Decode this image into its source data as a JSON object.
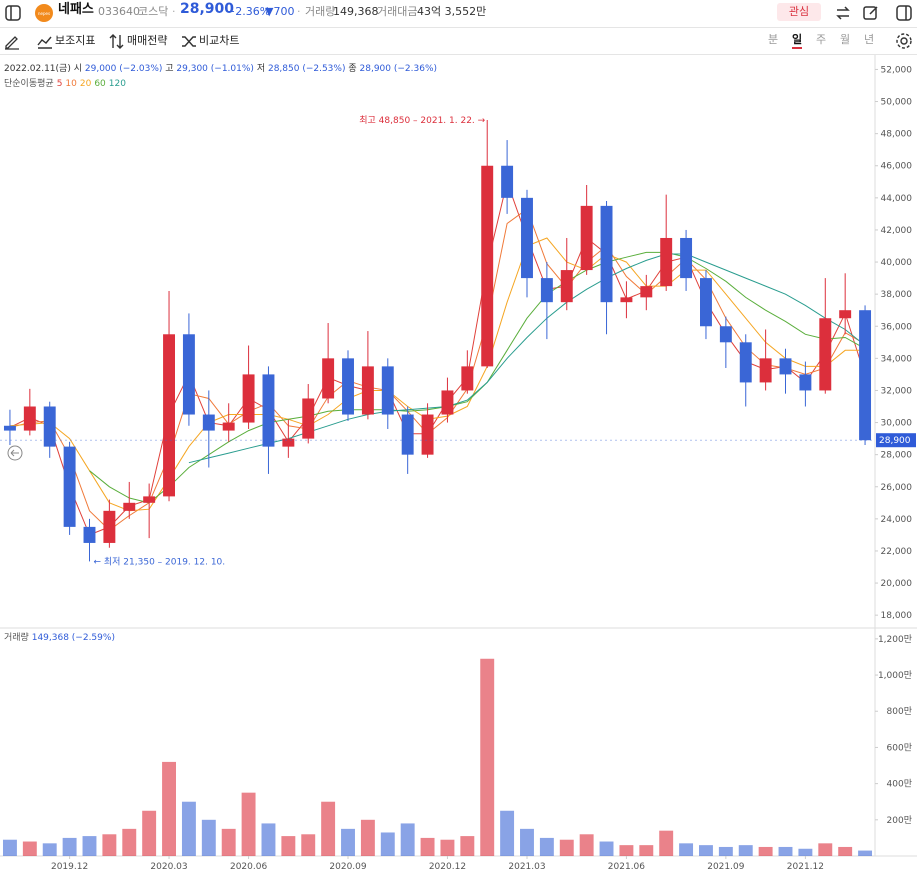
{
  "header": {
    "name": "네패스",
    "code": "033640",
    "market": "코스닥",
    "price": "28,900",
    "change_pct": "−2.36%",
    "change": "▼700",
    "volume_label": "거래량",
    "volume": "149,368",
    "amount_label": "거래대금",
    "amount": "43억 3,552만",
    "watch": "관심"
  },
  "toolbar": {
    "tools": [
      "보조지표",
      "매매전략",
      "비교차트"
    ],
    "periods": [
      "분",
      "일",
      "주",
      "월",
      "년"
    ],
    "active_period": "일"
  },
  "chart_data": {
    "type": "candlestick",
    "info": {
      "date": "2022.02.11(금)",
      "open_label": "시",
      "open": "29,000 (−2.03%)",
      "high_label": "고",
      "high": "29,300 (−1.01%)",
      "low_label": "저",
      "low": "28,850 (−2.53%)",
      "close_label": "종",
      "close": "28,900 (−2.36%)"
    },
    "ma_label": "단순이동평균",
    "annotations": {
      "high": "최고 48,850 – 2021. 1. 22. →",
      "low": "← 최저 21,350 – 2019. 12. 10."
    },
    "last_price": {
      "value": 28900,
      "label": "28,900"
    },
    "up_color": "#dc2f3c",
    "down_color": "#3a66d6",
    "categories": [
      null,
      null,
      null,
      "2019.12",
      null,
      null,
      null,
      null,
      "2020.03",
      null,
      null,
      null,
      "2020.06",
      null,
      null,
      null,
      null,
      "2020.09",
      null,
      null,
      null,
      null,
      "2020.12",
      null,
      null,
      null,
      "2021.03",
      null,
      null,
      null,
      null,
      "2021.06",
      null,
      null,
      null,
      null,
      "2021.09",
      null,
      null,
      null,
      "2021.12",
      null,
      null,
      null
    ],
    "open": [
      29800,
      29500,
      31000,
      28500,
      23500,
      22500,
      24500,
      25000,
      25400,
      35500,
      30500,
      29500,
      30000,
      33000,
      28500,
      29000,
      31500,
      34000,
      30500,
      33500,
      30500,
      28000,
      30500,
      32000,
      33500,
      46000,
      44000,
      39000,
      37500,
      39500,
      43500,
      37500,
      37800,
      38500,
      41500,
      39000,
      36000,
      35000,
      32500,
      34000,
      33000,
      32000,
      36500,
      37000
    ],
    "high": [
      30800,
      32100,
      31300,
      28800,
      24000,
      25200,
      26300,
      26200,
      38200,
      36800,
      32000,
      31200,
      34800,
      33500,
      30200,
      32400,
      36200,
      34500,
      35700,
      34000,
      31000,
      31200,
      32800,
      34500,
      48850,
      47600,
      44500,
      40000,
      41500,
      44800,
      43800,
      38800,
      39200,
      44200,
      42000,
      39500,
      36600,
      35500,
      35800,
      34600,
      33800,
      39000,
      39300,
      37300
    ],
    "low": [
      28600,
      29200,
      27800,
      23000,
      21350,
      22200,
      24000,
      22800,
      25100,
      29800,
      27200,
      28800,
      29600,
      26800,
      27800,
      28700,
      31200,
      30100,
      30200,
      29600,
      26800,
      27800,
      30000,
      31800,
      33400,
      43000,
      37800,
      35200,
      37000,
      39200,
      35500,
      36500,
      37000,
      38200,
      38200,
      35200,
      33400,
      31000,
      32000,
      31800,
      31000,
      31800,
      35500,
      28600
    ],
    "close": [
      29500,
      31000,
      28500,
      23500,
      22500,
      24500,
      25000,
      25400,
      35500,
      30500,
      29500,
      30000,
      33000,
      28500,
      29000,
      31500,
      34000,
      30500,
      33500,
      30500,
      28000,
      30500,
      32000,
      33500,
      46000,
      44000,
      39000,
      37500,
      39500,
      43500,
      37500,
      37800,
      38500,
      41500,
      39000,
      36000,
      35000,
      32500,
      34000,
      33000,
      32000,
      36500,
      37000,
      28900
    ],
    "series": [
      {
        "name": "5",
        "color": "#e0403a",
        "values": [
          29700,
          30300,
          29800,
          26000,
          23000,
          23500,
          24800,
          25200,
          30500,
          33000,
          30000,
          29800,
          31500,
          30800,
          28800,
          30300,
          32800,
          32300,
          32000,
          32000,
          29300,
          29300,
          31300,
          32800,
          39800,
          45000,
          41500,
          38300,
          38500,
          41500,
          40500,
          37700,
          38200,
          40000,
          40300,
          37500,
          35500,
          33800,
          33300,
          33500,
          32500,
          34300,
          36800,
          32900
        ]
      },
      {
        "name": "10",
        "color": "#f07a3a",
        "values": [
          29700,
          30000,
          30100,
          27900,
          24500,
          23300,
          24200,
          25000,
          27900,
          31800,
          31500,
          29900,
          30700,
          31200,
          29800,
          29600,
          31600,
          32600,
          32200,
          32000,
          30700,
          29300,
          30300,
          32100,
          36300,
          42400,
          43300,
          39900,
          38400,
          40000,
          41000,
          39100,
          38000,
          39100,
          40200,
          38900,
          36500,
          34700,
          33600,
          33400,
          33000,
          33400,
          35600,
          34900
        ]
      },
      {
        "name": "20",
        "color": "#f5a623",
        "values": [
          29800,
          29900,
          30000,
          29000,
          27000,
          25000,
          24500,
          24600,
          26500,
          28500,
          30000,
          30500,
          30500,
          30500,
          30200,
          29800,
          30500,
          31500,
          32000,
          32000,
          31000,
          30200,
          30400,
          31000,
          33500,
          37500,
          41000,
          41500,
          40000,
          39500,
          40500,
          40000,
          38500,
          38500,
          39500,
          39500,
          38000,
          36500,
          35000,
          34000,
          33500,
          33500,
          34500,
          34500
        ]
      },
      {
        "name": "60",
        "color": "#5aae3c",
        "values": [
          null,
          null,
          null,
          null,
          27000,
          26000,
          25300,
          25000,
          26000,
          27200,
          28000,
          28800,
          29500,
          30000,
          30200,
          30400,
          30700,
          30800,
          30800,
          30800,
          30700,
          30800,
          31000,
          31300,
          32500,
          34500,
          36500,
          38000,
          38800,
          39500,
          40000,
          40300,
          40600,
          40600,
          40300,
          39600,
          38800,
          37800,
          37000,
          36300,
          35500,
          35200,
          35300,
          34600
        ]
      },
      {
        "name": "120",
        "color": "#2a9d8f",
        "values": [
          null,
          null,
          null,
          null,
          null,
          null,
          null,
          null,
          null,
          27500,
          27800,
          28100,
          28400,
          28700,
          29000,
          29400,
          29800,
          30200,
          30500,
          30700,
          30800,
          30900,
          31000,
          31400,
          32500,
          34000,
          35300,
          36500,
          37500,
          38300,
          39000,
          39600,
          40100,
          40500,
          40500,
          40000,
          39500,
          39000,
          38500,
          38000,
          37300,
          36500,
          35800,
          34800
        ]
      }
    ],
    "ylim": [
      17200,
      52900
    ],
    "yticks": [
      {
        "value": 18000,
        "label": "18,000"
      },
      {
        "value": 20000,
        "label": "20,000"
      },
      {
        "value": 22000,
        "label": "22,000"
      },
      {
        "value": 24000,
        "label": "24,000"
      },
      {
        "value": 26000,
        "label": "26,000"
      },
      {
        "value": 28000,
        "label": "28,000"
      },
      {
        "value": 30000,
        "label": "30,000"
      },
      {
        "value": 32000,
        "label": "32,000"
      },
      {
        "value": 34000,
        "label": "34,000"
      },
      {
        "value": 36000,
        "label": "36,000"
      },
      {
        "value": 38000,
        "label": "38,000"
      },
      {
        "value": 40000,
        "label": "40,000"
      },
      {
        "value": 42000,
        "label": "42,000"
      },
      {
        "value": 44000,
        "label": "44,000"
      },
      {
        "value": 46000,
        "label": "46,000"
      },
      {
        "value": 48000,
        "label": "48,000"
      },
      {
        "value": 50000,
        "label": "50,000"
      },
      {
        "value": 52000,
        "label": "52,000"
      }
    ],
    "volume": {
      "name": "거래량",
      "value_label": "149,368 (−2.59%)",
      "values": [
        90,
        80,
        70,
        100,
        110,
        120,
        150,
        250,
        520,
        300,
        200,
        150,
        350,
        180,
        110,
        120,
        300,
        150,
        200,
        130,
        180,
        100,
        90,
        110,
        1090,
        250,
        150,
        100,
        90,
        120,
        80,
        60,
        60,
        140,
        70,
        60,
        50,
        60,
        50,
        50,
        40,
        70,
        50,
        30
      ],
      "ylim": [
        0,
        1260
      ],
      "yticks": [
        {
          "value": 200,
          "label": "200만"
        },
        {
          "value": 400,
          "label": "400만"
        },
        {
          "value": 600,
          "label": "600만"
        },
        {
          "value": 800,
          "label": "800만"
        },
        {
          "value": 1000,
          "label": "1,000만"
        },
        {
          "value": 1200,
          "label": "1,200만"
        }
      ]
    }
  }
}
